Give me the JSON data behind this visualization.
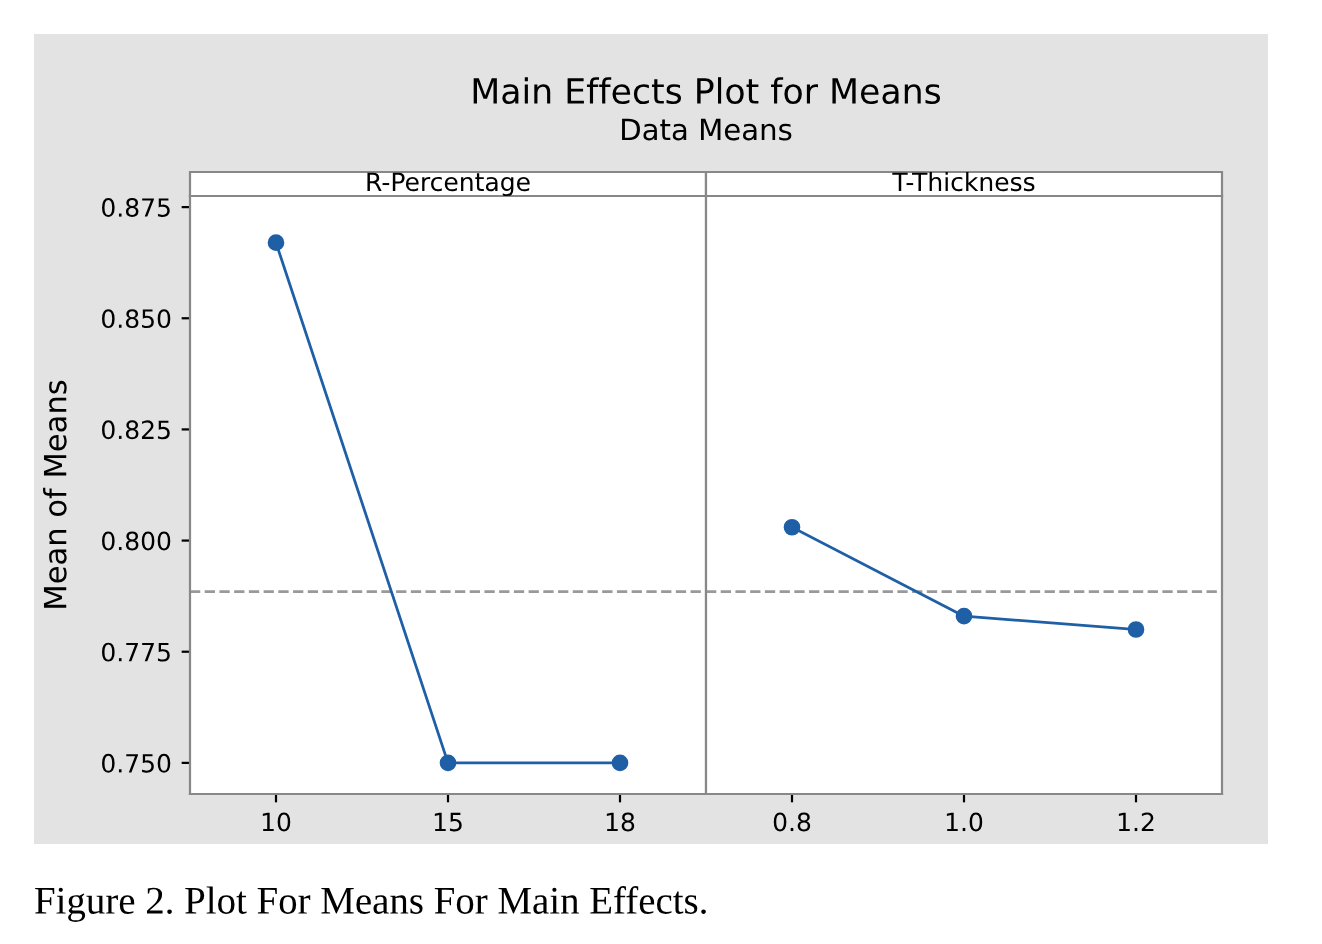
{
  "chart_data": [
    {
      "type": "line",
      "title": "Main Effects Plot for Means",
      "subtitle": "Data Means",
      "xlabel": "R-Percentage",
      "ylabel": "Mean of Means",
      "categories": [
        "10",
        "15",
        "18"
      ],
      "series": [
        {
          "color": "#1f5fa6",
          "values": [
            0.867,
            0.75,
            0.75
          ]
        }
      ],
      "ylim": [
        0.743,
        0.8775
      ],
      "yticks": [
        {
          "value": 0.75,
          "label": "0.750"
        },
        {
          "value": 0.775,
          "label": "0.775"
        },
        {
          "value": 0.8,
          "label": "0.800"
        },
        {
          "value": 0.825,
          "label": "0.825"
        },
        {
          "value": 0.85,
          "label": "0.850"
        },
        {
          "value": 0.875,
          "label": "0.875"
        }
      ],
      "ref_lines": [
        {
          "axis": "y",
          "value": 0.7885,
          "color": "#999999",
          "line_style": "dashed"
        }
      ],
      "marker": "circle",
      "line_style": "solid",
      "grid": false,
      "legend": false,
      "annotations": [
        "Figure 2. Plot For Means For Main Effects."
      ]
    },
    {
      "type": "line",
      "xlabel": "T-Thickness",
      "categories": [
        "0.8",
        "1.0",
        "1.2"
      ],
      "series": [
        {
          "color": "#1f5fa6",
          "values": [
            0.803,
            0.783,
            0.78
          ]
        }
      ],
      "ylim": [
        0.743,
        0.8775
      ],
      "ref_lines": [
        {
          "axis": "y",
          "value": 0.7885,
          "color": "#999999",
          "line_style": "dashed"
        }
      ],
      "marker": "circle",
      "line_style": "solid",
      "grid": false,
      "legend": false,
      "tick_labels": "x"
    }
  ]
}
